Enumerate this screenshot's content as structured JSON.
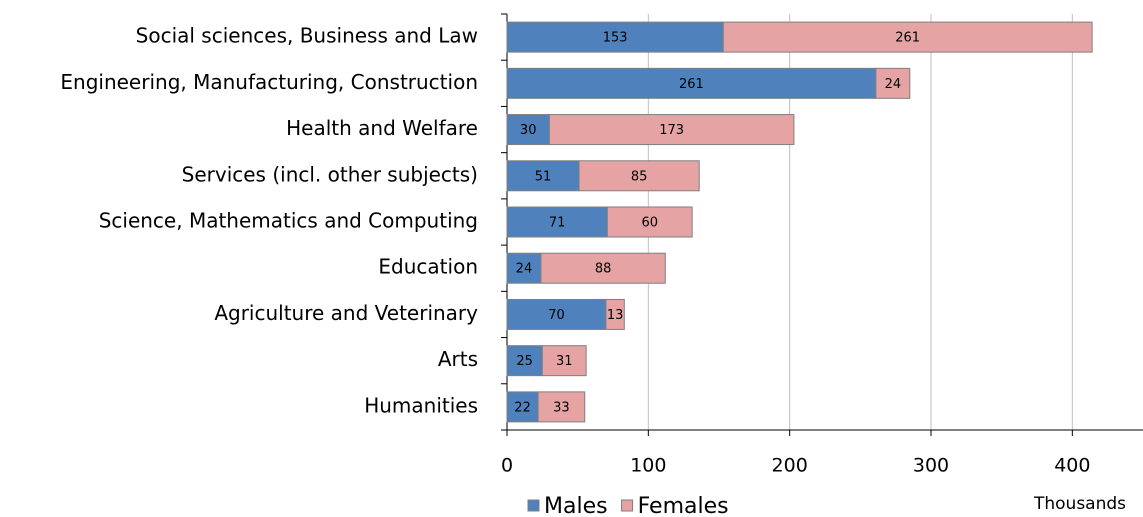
{
  "chart_data": {
    "type": "stacked-barh",
    "categories": [
      "Social sciences, Business and Law",
      "Engineering, Manufacturing, Construction",
      "Health and Welfare",
      "Services (incl. other subjects)",
      "Science, Mathematics and Computing",
      "Education",
      "Agriculture and Veterinary",
      "Arts",
      "Humanities"
    ],
    "series": [
      {
        "name": "Males",
        "color": "#4f81bd",
        "values": [
          153,
          261,
          30,
          51,
          71,
          24,
          70,
          25,
          22
        ]
      },
      {
        "name": "Females",
        "color": "#e6a3a3",
        "values": [
          261,
          24,
          173,
          85,
          60,
          88,
          13,
          31,
          33
        ]
      }
    ],
    "x_label": "Thousands",
    "xlim": [
      0,
      450
    ],
    "xticks": [
      0,
      100,
      200,
      300,
      400
    ],
    "grid": true
  }
}
